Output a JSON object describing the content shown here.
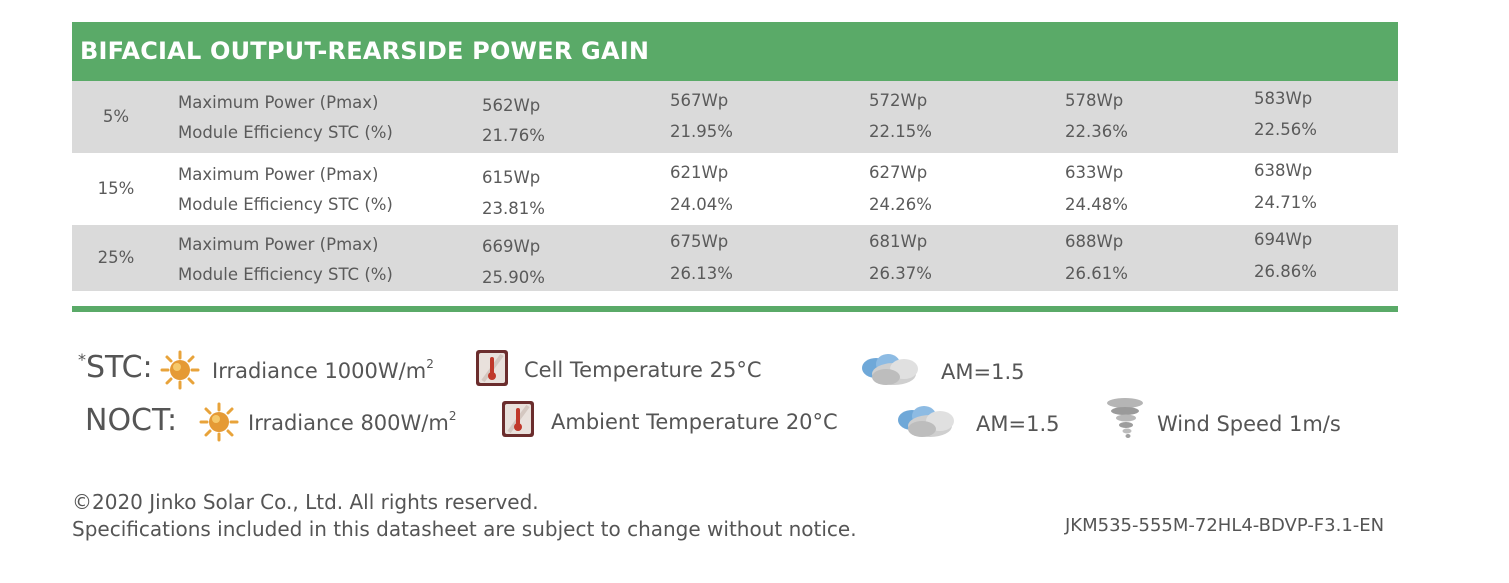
{
  "table": {
    "title": "BIFACIAL OUTPUT-REARSIDE POWER GAIN",
    "rows": [
      {
        "gain": "5%",
        "power_label": "Maximum Power (Pmax)",
        "eff_label": "Module Efficiency STC (%)",
        "power": [
          "562Wp",
          "567Wp",
          "572Wp",
          "578Wp",
          "583Wp"
        ],
        "efficiency": [
          "21.76%",
          "21.95%",
          "22.15%",
          "22.36%",
          "22.56%"
        ]
      },
      {
        "gain": "15%",
        "power_label": "Maximum Power (Pmax)",
        "eff_label": "Module Efficiency STC (%)",
        "power": [
          "615Wp",
          "621Wp",
          "627Wp",
          "633Wp",
          "638Wp"
        ],
        "efficiency": [
          "23.81%",
          "24.04%",
          "24.26%",
          "24.48%",
          "24.71%"
        ]
      },
      {
        "gain": "25%",
        "power_label": "Maximum Power (Pmax)",
        "eff_label": "Module Efficiency STC (%)",
        "power": [
          "669Wp",
          "675Wp",
          "681Wp",
          "688Wp",
          "694Wp"
        ],
        "efficiency": [
          "25.90%",
          "26.13%",
          "26.37%",
          "26.61%",
          "26.86%"
        ]
      }
    ]
  },
  "legend": {
    "stc": {
      "asterisk": "*",
      "label": "STC:",
      "irradiance": "Irradiance 1000W/m",
      "irradiance_sup": "2",
      "temperature": "Cell Temperature 25°C",
      "am": "AM=1.5"
    },
    "noct": {
      "label": "NOCT:",
      "irradiance": "Irradiance 800W/m",
      "irradiance_sup": "2",
      "temperature": "Ambient Temperature 20°C",
      "am": "AM=1.5",
      "wind": "Wind Speed 1m/s"
    },
    "icons": [
      "sun-icon",
      "thermometer-icon",
      "cloud-icon",
      "tornado-icon"
    ]
  },
  "footer": {
    "copyright": "©2020 Jinko Solar Co., Ltd. All rights reserved.",
    "notice": "Specifications included in this datasheet are subject to change without notice.",
    "doc_code": "JKM535-555M-72HL4-BDVP-F3.1-EN"
  },
  "colors": {
    "accent_green": "#5aaa68",
    "row_shade": "#dadada",
    "text": "#5a5a5a"
  }
}
